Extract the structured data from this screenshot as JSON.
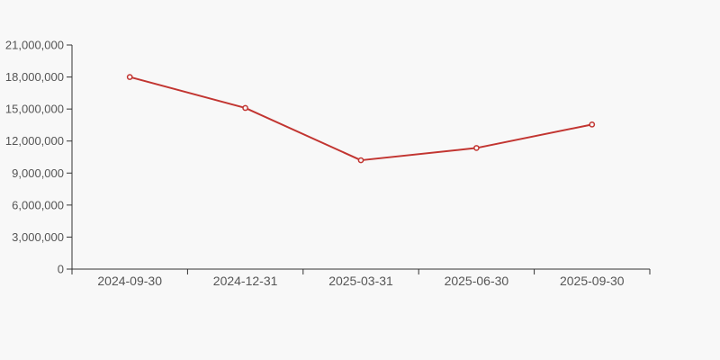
{
  "chart_data": {
    "type": "line",
    "title": "",
    "xlabel": "",
    "ylabel": "",
    "categories": [
      "2024-09-30",
      "2024-12-31",
      "2025-03-31",
      "2025-06-30",
      "2025-09-30"
    ],
    "series": [
      {
        "name": "",
        "values": [
          18000000,
          15100000,
          10200000,
          11350000,
          13550000
        ]
      }
    ],
    "ylim": [
      0,
      21000000
    ],
    "ytick_step": 3000000,
    "ytick_labels": [
      "0",
      "3,000,000",
      "6,000,000",
      "9,000,000",
      "12,000,000",
      "15,000,000",
      "18,000,000",
      "21,000,000"
    ],
    "grid": false,
    "legend": false,
    "marker": "hollow-circle",
    "colors": {
      "line": "#c23531",
      "marker_fill": "#f8f8f8",
      "axis": "#333333",
      "tick_label": "#555555",
      "background": "#f8f8f8"
    }
  }
}
